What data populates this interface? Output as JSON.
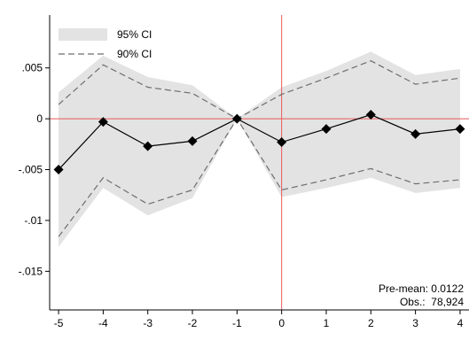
{
  "chart_data": {
    "type": "line",
    "title": "",
    "xlabel": "",
    "ylabel": "",
    "x": [
      -5,
      -4,
      -3,
      -2,
      -1,
      0,
      1,
      2,
      3,
      4
    ],
    "x_tick_labels": [
      "-5",
      "-4",
      "-3",
      "-2",
      "-1",
      "0",
      "1",
      "2",
      "3",
      "4"
    ],
    "y_ticks": [
      0.005,
      0,
      -0.005,
      -0.01,
      -0.015
    ],
    "y_tick_labels": [
      ".005",
      "0",
      "-.005",
      "-.01",
      "-.015"
    ],
    "xlim": [
      -5.2,
      4.2
    ],
    "ylim": [
      -0.0188,
      0.0102
    ],
    "series": [
      {
        "name": "",
        "kind": "point-estimate",
        "values": [
          -0.005,
          -0.0003,
          -0.0027,
          -0.0022,
          0.0,
          -0.0023,
          -0.001,
          0.0004,
          -0.0015,
          -0.001
        ]
      },
      {
        "name": "95% CI",
        "kind": "band",
        "lower": [
          -0.0126,
          -0.0068,
          -0.0095,
          -0.0078,
          0.0,
          -0.0077,
          -0.0068,
          -0.0058,
          -0.0073,
          -0.0068
        ],
        "upper": [
          0.0026,
          0.0062,
          0.0041,
          0.0033,
          0.0,
          0.0031,
          0.0047,
          0.0066,
          0.0043,
          0.0049
        ]
      },
      {
        "name": "90% CI",
        "kind": "dashed",
        "lower": [
          -0.0116,
          -0.0058,
          -0.0084,
          -0.007,
          0.0,
          -0.007,
          -0.006,
          -0.0049,
          -0.0064,
          -0.006
        ],
        "upper": [
          0.0014,
          0.0053,
          0.0031,
          0.0025,
          0.0,
          0.0024,
          0.004,
          0.0057,
          0.0034,
          0.004
        ]
      }
    ],
    "reference_lines": {
      "horizontal_y": 0,
      "vertical_x": 0,
      "color": "#e8585a"
    },
    "legend": {
      "placement": "top-left",
      "entries": [
        "95% CI",
        "90% CI"
      ]
    },
    "notes": [
      "Pre-mean: 0.0122",
      "Obs.:  78,924"
    ],
    "notes_placement": "bottom-right",
    "grid": false,
    "colors": {
      "band": "#e3e3e3",
      "dashed": "#6e6e6e",
      "estimate": "#000000",
      "reference": "#e8585a"
    }
  }
}
